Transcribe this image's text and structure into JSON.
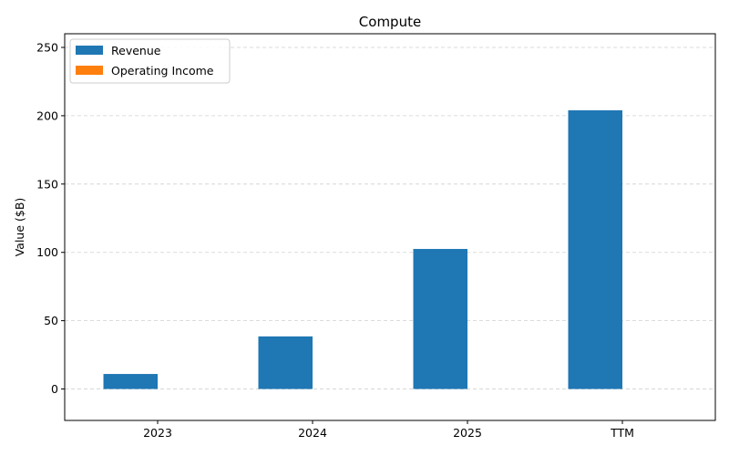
{
  "chart_data": {
    "type": "bar",
    "title": "Compute",
    "xlabel": "",
    "ylabel": "Value ($B)",
    "categories": [
      "2023",
      "2024",
      "2025",
      "TTM"
    ],
    "series": [
      {
        "name": "Revenue",
        "values": [
          11,
          38.5,
          102.5,
          204
        ],
        "color": "#1f77b4"
      },
      {
        "name": "Operating Income",
        "values": [
          0,
          0,
          0,
          0
        ],
        "color": "#ff7f0e"
      }
    ],
    "ylim": [
      -23,
      260
    ],
    "yticks": [
      0,
      50,
      100,
      150,
      200,
      250
    ],
    "ytick_labels": [
      "0",
      "50",
      "100",
      "150",
      "200",
      "250"
    ],
    "grid": "y, dashed",
    "legend_position": "upper-left"
  }
}
